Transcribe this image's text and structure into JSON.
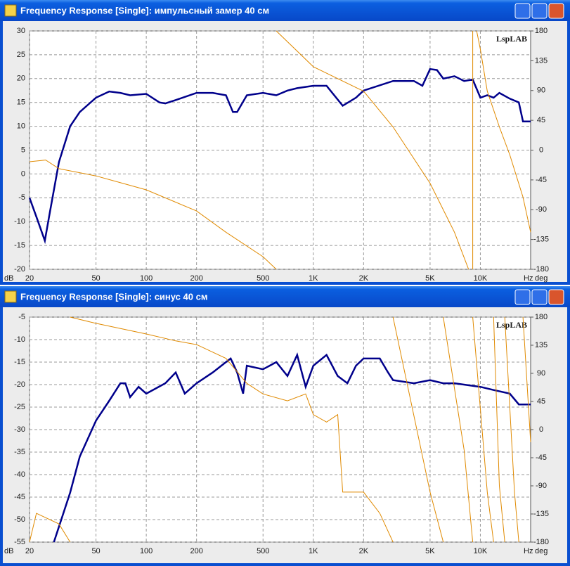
{
  "chart_data": [
    {
      "type": "line",
      "title": "Frequency Response [Single]: импульсный замер 40 см",
      "annotation": "LspLAB",
      "xlabel": "Hz",
      "ylabel": "dB",
      "y2label": "deg",
      "xscale": "log",
      "grid": true,
      "xlim": [
        20,
        20000
      ],
      "xticks": [
        20,
        50,
        100,
        200,
        500,
        {
          "value": 1000,
          "label": "1K"
        },
        {
          "value": 2000,
          "label": "2K"
        },
        {
          "value": 5000,
          "label": "5K"
        },
        {
          "value": 10000,
          "label": "10K"
        }
      ],
      "ylim": [
        -20,
        30
      ],
      "yticks": [
        30,
        25,
        20,
        15,
        10,
        5,
        0,
        -5,
        -10,
        -15,
        -20
      ],
      "y2lim": [
        -180,
        180
      ],
      "y2ticks": [
        180,
        135,
        90,
        45,
        0,
        -45,
        -90,
        -135,
        -180
      ],
      "series": [
        {
          "color": "#00008b",
          "x": [
            20,
            22,
            24.7,
            26.5,
            30,
            35,
            40,
            50,
            60,
            70,
            80,
            100,
            120,
            130,
            150,
            200,
            250,
            300,
            330,
            350,
            400,
            500,
            600,
            700,
            800,
            1000,
            1200,
            1500,
            1800,
            2000,
            3000,
            4000,
            4500,
            5000,
            5500,
            6000,
            7000,
            8000,
            9000,
            10000,
            11000,
            12000,
            13000,
            15000,
            17000,
            18000,
            20000
          ],
          "values": [
            -5,
            -9,
            -14,
            -8,
            2.5,
            10,
            13,
            16,
            17.3,
            17,
            16.5,
            16.8,
            15,
            14.8,
            15.5,
            17,
            17,
            16.5,
            13,
            13,
            16.5,
            17,
            16.5,
            17.5,
            18,
            18.5,
            18.5,
            14.3,
            16,
            17.5,
            19.5,
            19.5,
            18.5,
            22,
            21.8,
            20,
            20.5,
            19.5,
            19.8,
            16,
            16.5,
            16,
            17,
            15.8,
            15,
            11,
            11
          ]
        },
        {
          "color": "#e08a00",
          "axis": "y2",
          "x": [
            20,
            25,
            30,
            50,
            100,
            200,
            300,
            500,
            600,
            600,
            600,
            1000,
            2000,
            3000,
            5000,
            7000,
            8500,
            8500,
            9000,
            9000,
            9500,
            9500,
            10000,
            11000,
            13000,
            15000,
            18000,
            20000
          ],
          "values": [
            -17.5,
            -15,
            -28,
            -39,
            -60,
            -92,
            -124,
            -161,
            -180,
            null,
            180,
            126,
            89,
            35,
            -50,
            -124,
            -180,
            null,
            180,
            -180,
            null,
            180,
            152,
            89,
            35,
            -7,
            -71,
            -124
          ]
        }
      ]
    },
    {
      "type": "line",
      "title": "Frequency Response [Single]: синус 40 см",
      "annotation": "LspLAB",
      "xlabel": "Hz",
      "ylabel": "dB",
      "y2label": "deg",
      "xscale": "log",
      "grid": true,
      "xlim": [
        20,
        20000
      ],
      "xticks": [
        20,
        50,
        100,
        200,
        500,
        {
          "value": 1000,
          "label": "1K"
        },
        {
          "value": 2000,
          "label": "2K"
        },
        {
          "value": 5000,
          "label": "5K"
        },
        {
          "value": 10000,
          "label": "10K"
        }
      ],
      "ylim": [
        -55,
        -5
      ],
      "yticks": [
        -5,
        -10,
        -15,
        -20,
        -25,
        -30,
        -35,
        -40,
        -45,
        -50,
        -55
      ],
      "y2lim": [
        -180,
        180
      ],
      "y2ticks": [
        180,
        135,
        90,
        45,
        0,
        -45,
        -90,
        -135,
        -180
      ],
      "series": [
        {
          "color": "#00008b",
          "x": [
            28,
            35,
            40,
            50,
            60,
            70,
            75,
            80,
            90,
            100,
            130,
            150,
            170,
            200,
            250,
            300,
            320,
            350,
            380,
            400,
            500,
            600,
            700,
            800,
            900,
            1000,
            1200,
            1400,
            1600,
            1800,
            2000,
            2500,
            2800,
            3000,
            4000,
            5000,
            6000,
            7000,
            10000,
            12000,
            15000,
            17000,
            20000
          ],
          "values": [
            -55,
            -44,
            -36,
            -28,
            -23.6,
            -19.7,
            -19.7,
            -22.8,
            -20.5,
            -22,
            -19.7,
            -17.3,
            -22,
            -19.7,
            -17.3,
            -15,
            -14.2,
            -17.3,
            -22,
            -15.8,
            -16.6,
            -15,
            -18.1,
            -13.4,
            -20.5,
            -15.8,
            -13.4,
            -18.1,
            -19.7,
            -15.8,
            -14.2,
            -14.2,
            -17.3,
            -19,
            -19.7,
            -19,
            -19.7,
            -19.7,
            -20.5,
            -21.2,
            -22,
            -24.4,
            -24.4
          ]
        },
        {
          "color": "#e08a00",
          "axis": "y2",
          "x": [
            20,
            22,
            30,
            35,
            35,
            35,
            50,
            100,
            150,
            200,
            300,
            400,
            500,
            700,
            900,
            1000,
            1200,
            1400,
            1500,
            2000,
            2500,
            3000,
            3000,
            3000,
            5000,
            6000,
            6000,
            6000,
            8000,
            9000,
            9000,
            9000,
            11000,
            12000,
            12000,
            12000,
            13000,
            14000,
            14000,
            14000,
            16000,
            17000,
            17000,
            18000,
            20000
          ],
          "values": [
            -180,
            -134,
            -151,
            -180,
            null,
            180,
            170,
            153,
            142,
            136,
            114,
            74,
            57,
            46,
            57,
            24,
            12,
            24,
            -100,
            -100,
            -134,
            -180,
            null,
            180,
            -100,
            -180,
            null,
            180,
            -33,
            -180,
            null,
            180,
            -100,
            -180,
            null,
            180,
            -90,
            -180,
            null,
            180,
            -100,
            -180,
            null,
            180,
            -20
          ]
        }
      ]
    }
  ]
}
